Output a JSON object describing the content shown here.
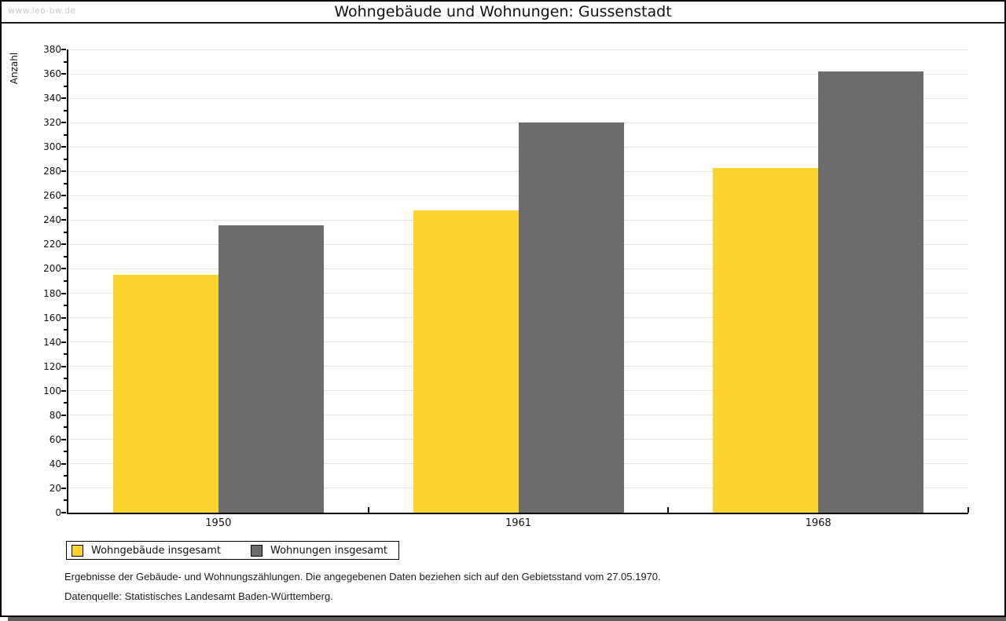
{
  "watermark": "www.leo-bw.de",
  "chart_data": {
    "type": "bar",
    "title": "Wohngebäude und Wohnungen: Gussenstadt",
    "categories": [
      "1950",
      "1961",
      "1968"
    ],
    "series": [
      {
        "name": "Wohngebäude insgesamt",
        "color": "#FCD42D",
        "values": [
          195,
          248,
          283
        ]
      },
      {
        "name": "Wohnungen insgesamt",
        "color": "#6C6C6C",
        "values": [
          236,
          320,
          362
        ]
      }
    ],
    "xlabel": "",
    "ylabel": "Anzahl",
    "ylim": [
      0,
      380
    ],
    "ytick_step": 20,
    "minor_tick_step": 10,
    "grid": true,
    "legend_position": "bottom-left"
  },
  "notes": {
    "line1": "Ergebnisse der Gebäude- und Wohnungszählungen. Die angegebenen Daten beziehen sich auf den Gebietsstand vom 27.05.1970.",
    "line2": "Datenquelle: Statistisches Landesamt Baden-Württemberg."
  }
}
